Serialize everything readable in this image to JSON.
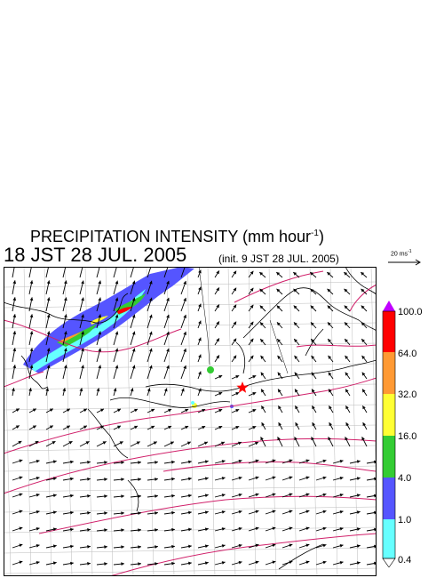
{
  "title": {
    "main": "PRECIPITATION INTENSITY (mm hour",
    "unit_sup": "-1",
    "main_close": ")"
  },
  "timestamp": "18 JST 28 JUL. 2005",
  "init": "(init. 9 JST 28 JUL. 2005)",
  "wind_scale": {
    "label": "20 ms",
    "label_sup": "-1",
    "value": 20
  },
  "legend": {
    "levels": [
      "100.0",
      "64.0",
      "32.0",
      "16.0",
      "4.0",
      "1.0",
      "0.4"
    ],
    "colors": {
      "above_max": "#c000ff",
      "band_64_100": "#ff0000",
      "band_32_64": "#ff9933",
      "band_16_32": "#ffff33",
      "band_4_16": "#33cc33",
      "band_1_4": "#5555ff",
      "band_04_1": "#66ffff",
      "below_min": "#ffffff"
    }
  },
  "colors": {
    "contour": "#d0206a",
    "coastline": "#000000",
    "grid": "#bbbbbb",
    "arrow": "#000000"
  },
  "markers": {
    "star_color": "#ff0000"
  }
}
